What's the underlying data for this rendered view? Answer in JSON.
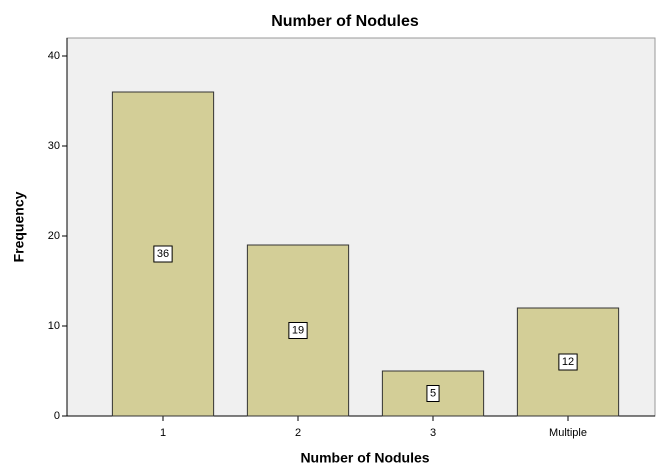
{
  "chart_data": {
    "type": "bar",
    "title": "Number of Nodules",
    "x_label": "Number of Nodules",
    "y_label": "Frequency",
    "categories": [
      "1",
      "2",
      "3",
      "Multiple"
    ],
    "values": [
      36,
      19,
      5,
      12
    ],
    "color": "#d3ce97",
    "ylim": [
      0,
      42
    ],
    "yticks": [
      0,
      10,
      20,
      30,
      40
    ],
    "grid": false
  }
}
